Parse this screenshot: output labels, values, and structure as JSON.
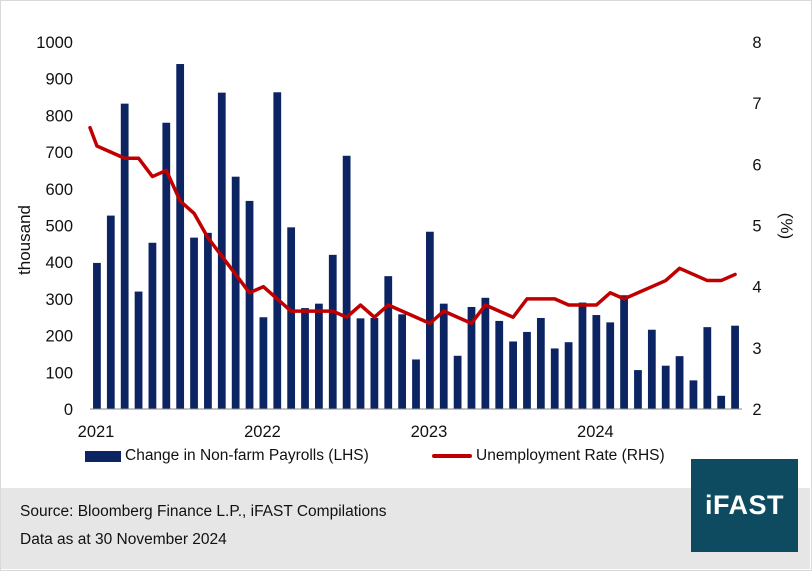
{
  "chart_data": {
    "type": "bar+line",
    "title": "",
    "ylabel_left": "thousand",
    "ylabel_right": "(%)",
    "ylim_left": [
      0,
      1000
    ],
    "ylim_right": [
      2,
      8
    ],
    "yticks_left": [
      "0",
      "100",
      "200",
      "300",
      "400",
      "500",
      "600",
      "700",
      "800",
      "900",
      "1000"
    ],
    "yticks_right": [
      "2",
      "3",
      "4",
      "5",
      "6",
      "7",
      "8"
    ],
    "xticks": [
      "2021",
      "2022",
      "2023",
      "2024"
    ],
    "months": [
      "2021-01",
      "2021-02",
      "2021-03",
      "2021-04",
      "2021-05",
      "2021-06",
      "2021-07",
      "2021-08",
      "2021-09",
      "2021-10",
      "2021-11",
      "2021-12",
      "2022-01",
      "2022-02",
      "2022-03",
      "2022-04",
      "2022-05",
      "2022-06",
      "2022-07",
      "2022-08",
      "2022-09",
      "2022-10",
      "2022-11",
      "2022-12",
      "2023-01",
      "2023-02",
      "2023-03",
      "2023-04",
      "2023-05",
      "2023-06",
      "2023-07",
      "2023-08",
      "2023-09",
      "2023-10",
      "2023-11",
      "2023-12",
      "2024-01",
      "2024-02",
      "2024-03",
      "2024-04",
      "2024-05",
      "2024-06",
      "2024-07",
      "2024-08",
      "2024-09",
      "2024-10",
      "2024-11"
    ],
    "series": [
      {
        "name": "Change in Non-farm Payrolls (LHS)",
        "type": "bar",
        "axis": "left",
        "color": "#0c2461",
        "values": [
          398,
          527,
          832,
          320,
          453,
          780,
          940,
          467,
          480,
          862,
          633,
          567,
          250,
          863,
          495,
          275,
          287,
          420,
          690,
          247,
          248,
          362,
          258,
          135,
          483,
          287,
          145,
          278,
          303,
          240,
          184,
          210,
          248,
          165,
          182,
          290,
          256,
          236,
          310,
          106,
          216,
          118,
          144,
          78,
          223,
          36,
          227
        ]
      },
      {
        "name": "Unemployment Rate (RHS)",
        "type": "line",
        "axis": "right",
        "color": "#c00000",
        "start_value": 6.6,
        "values": [
          6.3,
          6.2,
          6.1,
          6.1,
          5.8,
          5.9,
          5.4,
          5.2,
          4.8,
          4.5,
          4.2,
          3.9,
          4.0,
          3.8,
          3.6,
          3.6,
          3.6,
          3.6,
          3.5,
          3.7,
          3.5,
          3.7,
          3.6,
          3.5,
          3.4,
          3.6,
          3.5,
          3.4,
          3.7,
          3.6,
          3.5,
          3.8,
          3.8,
          3.8,
          3.7,
          3.7,
          3.7,
          3.9,
          3.8,
          3.9,
          4.0,
          4.1,
          4.3,
          4.2,
          4.1,
          4.1,
          4.2
        ]
      }
    ]
  },
  "legend": {
    "bar_label": "Change in Non-farm Payrolls (LHS)",
    "line_label": "Unemployment Rate (RHS)"
  },
  "footer": {
    "source": "Source: Bloomberg Finance L.P., iFAST Compilations",
    "as_at": "Data as at 30 November 2024"
  },
  "logo": {
    "text": "iFAST"
  }
}
